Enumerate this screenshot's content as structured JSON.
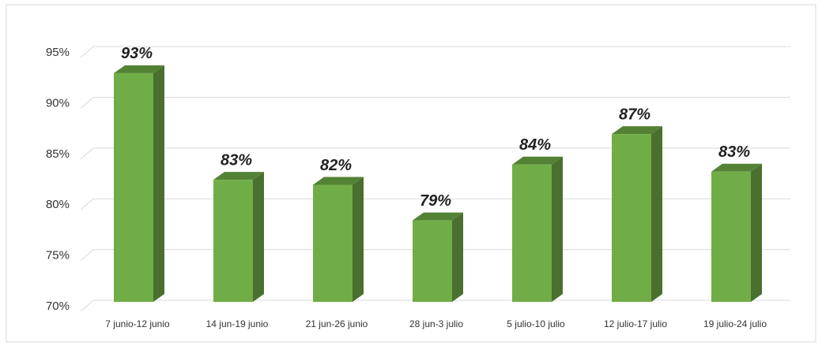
{
  "chart_data": {
    "type": "bar3d",
    "categories": [
      "7 junio-12 junio",
      "14 jun-19 junio",
      "21 jun-26 junio",
      "28 jun-3 julio",
      "5 julio-10 julio",
      "12 julio-17 julio",
      "19 julio-24 julio"
    ],
    "values": [
      93,
      82.5,
      82,
      78.5,
      84,
      87,
      83.3
    ],
    "value_labels": [
      "93%",
      "83%",
      "82%",
      "79%",
      "84%",
      "87%",
      "83%"
    ],
    "color": "#70ad47",
    "ylim": [
      70,
      97.5
    ],
    "yticks": [
      {
        "value": 70,
        "label": "70%"
      },
      {
        "value": 75,
        "label": "75%"
      },
      {
        "value": 80,
        "label": "80%"
      },
      {
        "value": 85,
        "label": "85%"
      },
      {
        "value": 90,
        "label": "90%"
      },
      {
        "value": 95,
        "label": "95%"
      }
    ],
    "grid": true
  }
}
